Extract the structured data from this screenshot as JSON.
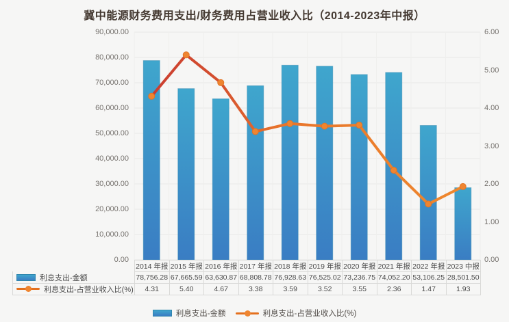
{
  "title": "冀中能源财务费用支出/财务费用占营业收入比（2014-2023年中报）",
  "chart_data": {
    "type": "bar+line",
    "categories": [
      "2014 年报",
      "2015 年报",
      "2016 年报",
      "2017 年报",
      "2018 年报",
      "2019 年报",
      "2020 年报",
      "2021 年报",
      "2022 年报",
      "2023 中报"
    ],
    "series": [
      {
        "name": "利息支出-金额",
        "type": "bar",
        "axis": "left",
        "values": [
          78756.28,
          67665.59,
          63630.87,
          68808.78,
          76928.63,
          76525.02,
          73236.75,
          74052.2,
          53106.25,
          28501.5
        ],
        "values_formatted": [
          "78,756.28",
          "67,665.59",
          "63,630.87",
          "68,808.78",
          "76,928.63",
          "76,525.02",
          "73,236.75",
          "74,052.20",
          "53,106.25",
          "28,501.50"
        ]
      },
      {
        "name": "利息支出-占营业收入比(%)",
        "type": "line",
        "axis": "right",
        "values": [
          4.31,
          5.4,
          4.67,
          3.38,
          3.59,
          3.52,
          3.55,
          2.36,
          1.47,
          1.93
        ],
        "values_formatted": [
          "4.31",
          "5.40",
          "4.67",
          "3.38",
          "3.59",
          "3.52",
          "3.55",
          "2.36",
          "1.47",
          "1.93"
        ]
      }
    ],
    "left_axis": {
      "min": 0,
      "max": 90000,
      "tick_step": 10000,
      "tick_labels": [
        "90,000.00",
        "80,000.00",
        "70,000.00",
        "60,000.00",
        "50,000.00",
        "40,000.00",
        "30,000.00",
        "20,000.00",
        "10,000.00",
        "0.00"
      ]
    },
    "right_axis": {
      "min": 0,
      "max": 6,
      "tick_step": 1,
      "tick_labels": [
        "6.00",
        "5.00",
        "4.00",
        "3.00",
        "2.00",
        "1.00",
        "0.00"
      ]
    },
    "grid": true,
    "legend_position": "bottom"
  },
  "legend": {
    "items": [
      {
        "label": "利息支出-金额"
      },
      {
        "label": "利息支出-占营业收入比(%)"
      }
    ]
  },
  "colors": {
    "background": "#f6f6f5",
    "bar_top": "#3fa6cd",
    "bar_bottom": "#3a7dc3",
    "bar_border": "#2f86ad",
    "line_start": "#c8382f",
    "line_mid": "#e8742b",
    "line_end": "#ef8a2e",
    "marker_fill": "#ef8530",
    "marker_stroke": "#e27425",
    "grid_line": "#e8e8e6",
    "grid_line_vertical": "#efefed",
    "table_border": "#d9d9d7",
    "title": "#443931"
  }
}
